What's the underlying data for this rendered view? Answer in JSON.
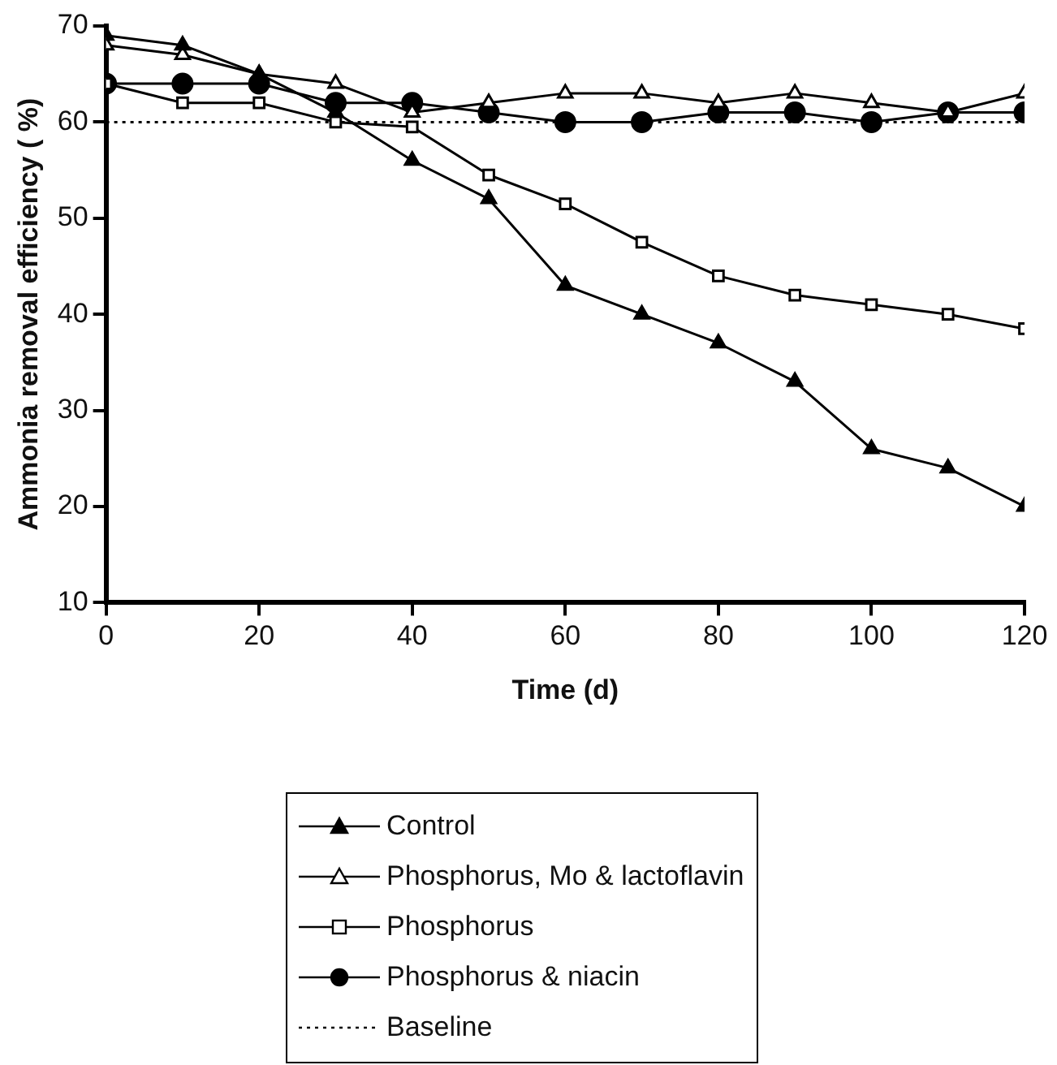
{
  "chart_data": {
    "type": "line",
    "xlabel": "Time (d)",
    "ylabel": "Ammonia removal efficiency ( %)",
    "x": [
      0,
      10,
      20,
      30,
      40,
      50,
      60,
      70,
      80,
      90,
      100,
      110,
      120
    ],
    "xlim": [
      0,
      120
    ],
    "xticks": [
      0,
      20,
      40,
      60,
      80,
      100,
      120
    ],
    "ylim": [
      10,
      70
    ],
    "yticks": [
      10,
      20,
      30,
      40,
      50,
      60,
      70
    ],
    "grid": false,
    "legend": "bottom",
    "series": [
      {
        "name": "Control",
        "color": "#000000",
        "marker": "triangle",
        "values": [
          69,
          68,
          65,
          61,
          56,
          52,
          43,
          40,
          37,
          33,
          26,
          24,
          20
        ]
      },
      {
        "name": "Phosphorus, Mo & lactoflavin",
        "color": "#000000",
        "marker": "triangle",
        "colors": [
          "#ffffff",
          "#ffffff",
          "#ffffff",
          "#ffffff",
          "#ffffff",
          "#ffffff",
          "#ffffff",
          "#ffffff",
          "#ffffff",
          "#ffffff",
          "#ffffff",
          "#ffffff",
          "#ffffff"
        ],
        "values": [
          68,
          67,
          65,
          64,
          61,
          62,
          63,
          63,
          62,
          63,
          62,
          61,
          63
        ]
      },
      {
        "name": "Phosphorus",
        "color": "#000000",
        "marker": "square",
        "colors": [
          "#ffffff",
          "#ffffff",
          "#ffffff",
          "#ffffff",
          "#ffffff",
          "#ffffff",
          "#ffffff",
          "#ffffff",
          "#ffffff",
          "#ffffff",
          "#ffffff",
          "#ffffff",
          "#ffffff"
        ],
        "values": [
          64,
          62,
          62,
          60,
          59.5,
          54.5,
          51.5,
          47.5,
          44,
          42,
          41,
          40,
          38.5
        ]
      },
      {
        "name": "Phosphorus & niacin",
        "color": "#000000",
        "marker": "circle",
        "values": [
          64,
          64,
          64,
          62,
          62,
          61,
          60,
          60,
          61,
          61,
          60,
          61,
          61
        ]
      },
      {
        "name": "Baseline",
        "color": "#000000",
        "marker": "none",
        "line_style": "dotted",
        "values": [
          60,
          60,
          60,
          60,
          60,
          60,
          60,
          60,
          60,
          60,
          60,
          60,
          60
        ]
      }
    ]
  }
}
